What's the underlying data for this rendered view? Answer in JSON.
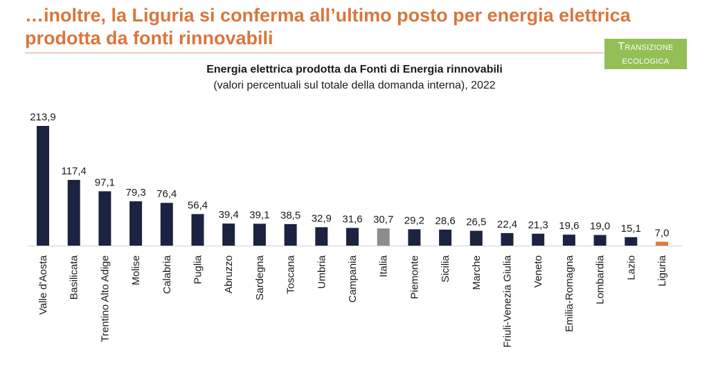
{
  "header": {
    "headline": "…inoltre, la Liguria si conferma all’ultimo posto per energia elettrica prodotta da fonti rinnovabili",
    "tag_line1": "Transizione",
    "tag_line2": "ecologica"
  },
  "colors": {
    "accent": "#d9763c",
    "bar": "#1c2340",
    "italia": "#8c8c8c",
    "highlight": "#e07b39",
    "tag_bg": "#94bf56"
  },
  "chart_data": {
    "type": "bar",
    "title": "Energia elettrica prodotta da Fonti di Energia rinnovabili",
    "subtitle": "(valori percentuali sul totale della domanda interna), 2022",
    "categories": [
      "Valle d'Aosta",
      "Basilicata",
      "Trentino Alto Adige",
      "Molise",
      "Calabria",
      "Puglia",
      "Abruzzo",
      "Sardegna",
      "Toscana",
      "Umbria",
      "Campania",
      "Italia",
      "Piemonte",
      "Sicilia",
      "Marche",
      "Friuli-Venezia Giulia",
      "Veneto",
      "Emilia-Romagna",
      "Lombardia",
      "Lazio",
      "Liguria"
    ],
    "values": [
      213.9,
      117.4,
      97.1,
      79.3,
      76.4,
      56.4,
      39.4,
      39.1,
      38.5,
      32.9,
      31.6,
      30.7,
      29.2,
      28.6,
      26.5,
      22.4,
      21.3,
      19.6,
      19.0,
      15.1,
      7.0
    ],
    "value_labels": [
      "213,9",
      "117,4",
      "97,1",
      "79,3",
      "76,4",
      "56,4",
      "39,4",
      "39,1",
      "38,5",
      "32,9",
      "31,6",
      "30,7",
      "29,2",
      "28,6",
      "26,5",
      "22,4",
      "21,3",
      "19,6",
      "19,0",
      "15,1",
      "7,0"
    ],
    "special": {
      "Italia": "italia",
      "Liguria": "highlight"
    },
    "ylim": [
      0,
      213.9
    ],
    "grid": false,
    "legend": "none"
  }
}
